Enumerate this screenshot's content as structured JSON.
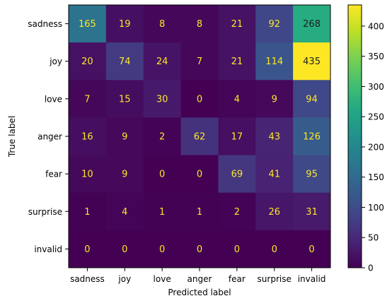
{
  "chart_data": {
    "type": "heatmap",
    "xlabel": "Predicted label",
    "ylabel": "True label",
    "categories_x": [
      "sadness",
      "joy",
      "love",
      "anger",
      "fear",
      "surprise",
      "invalid"
    ],
    "categories_y": [
      "sadness",
      "joy",
      "love",
      "anger",
      "fear",
      "surprise",
      "invalid"
    ],
    "values": [
      [
        165,
        19,
        8,
        8,
        21,
        92,
        268
      ],
      [
        20,
        74,
        24,
        7,
        21,
        114,
        435
      ],
      [
        7,
        15,
        30,
        0,
        4,
        9,
        94
      ],
      [
        16,
        9,
        2,
        62,
        17,
        43,
        126
      ],
      [
        10,
        9,
        0,
        0,
        69,
        41,
        95
      ],
      [
        1,
        4,
        1,
        1,
        2,
        26,
        31
      ],
      [
        0,
        0,
        0,
        0,
        0,
        0,
        0
      ]
    ],
    "colormap": "viridis",
    "value_range": [
      0,
      435
    ],
    "colorbar": {
      "ticks": [
        0,
        50,
        100,
        150,
        200,
        250,
        300,
        350,
        400
      ],
      "tick_labels": [
        "0",
        "50",
        "100",
        "150",
        "200",
        "250",
        "300",
        "350",
        "400"
      ]
    },
    "grid": false,
    "text_color_low": "#fde725",
    "text_color_high": "#1f1f1f"
  }
}
